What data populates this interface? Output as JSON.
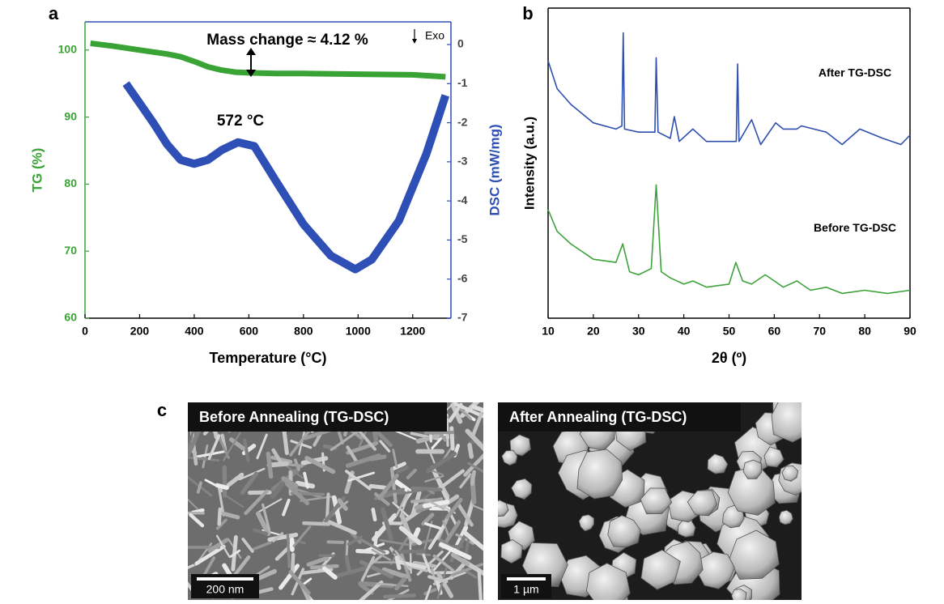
{
  "chart_data": [
    {
      "type": "line",
      "x_label": "Temperature (°C)",
      "y_label": "TG (%)",
      "y2_label": "DSC (mW/mg)",
      "annotations": [
        "Mass change ≈ 4.12 %",
        "572 °C",
        "Exo"
      ],
      "xlim": [
        0,
        1340
      ],
      "xticks": [
        0,
        200,
        400,
        600,
        800,
        1000,
        1200
      ],
      "ylim": [
        60,
        104.2
      ],
      "yticks": [
        60,
        70,
        80,
        90,
        100
      ],
      "y2lim": [
        -7,
        0.58
      ],
      "y2ticks": [
        0,
        -1,
        -2,
        -3,
        -4,
        -5,
        -6,
        -7
      ],
      "series": [
        {
          "color": "#3aa335",
          "x": [
            20,
            100,
            200,
            300,
            350,
            400,
            450,
            500,
            550,
            600,
            700,
            800,
            1000,
            1200,
            1320
          ],
          "values": [
            101,
            100.6,
            100,
            99.4,
            99,
            98.3,
            97.5,
            97,
            96.7,
            96.6,
            96.5,
            96.5,
            96.4,
            96.3,
            96
          ]
        },
        {
          "color": "#2e4fb5",
          "axis": "y2",
          "x": [
            150,
            200,
            250,
            300,
            350,
            400,
            450,
            500,
            560,
            620,
            700,
            800,
            900,
            990,
            1050,
            1150,
            1250,
            1320
          ],
          "values": [
            -1.0,
            -1.5,
            -2.0,
            -2.55,
            -2.95,
            -3.05,
            -2.95,
            -2.7,
            -2.5,
            -2.6,
            -3.5,
            -4.6,
            -5.4,
            -5.75,
            -5.5,
            -4.5,
            -2.8,
            -1.3
          ]
        }
      ]
    },
    {
      "type": "line",
      "x_label": "2θ (º)",
      "y_label": "Intensity (a.u.)",
      "xlim": [
        10,
        90
      ],
      "xticks": [
        10,
        20,
        30,
        40,
        50,
        60,
        70,
        80,
        90
      ],
      "ylim": [
        0,
        100
      ],
      "series": [
        {
          "name": "After TG-DSC",
          "color": "#2f4fae",
          "x": [
            10,
            12,
            15,
            20,
            25,
            26.3,
            26.6,
            26.9,
            30,
            33.6,
            33.9,
            34.3,
            37,
            37.9,
            39,
            42,
            45,
            51.6,
            51.9,
            52.2,
            55,
            57,
            60.3,
            62,
            65,
            66,
            71.5,
            75,
            78.9,
            84,
            88,
            90
          ],
          "values": [
            83,
            74,
            69,
            63,
            61,
            62,
            92,
            61,
            60,
            60,
            84,
            60,
            58,
            65,
            57,
            61,
            57,
            57,
            82,
            57,
            64,
            56,
            63,
            61,
            61,
            62,
            60,
            56,
            61,
            58,
            56,
            59
          ]
        },
        {
          "name": "Before TG-DSC",
          "color": "#3da23a",
          "x": [
            10,
            12,
            15,
            20,
            25,
            26.5,
            28,
            30,
            32.8,
            33.9,
            35,
            37,
            40,
            42,
            45,
            50,
            51.5,
            53,
            55,
            58,
            60,
            62,
            65,
            68,
            71.5,
            75,
            80,
            85,
            90
          ],
          "values": [
            35,
            28,
            24,
            19,
            18,
            24,
            15,
            14,
            16,
            43,
            15,
            13,
            11,
            12,
            10,
            11,
            18,
            12,
            11,
            14,
            12,
            10,
            12,
            9,
            10,
            8,
            9,
            8,
            9
          ]
        }
      ]
    }
  ],
  "figure": {
    "panel_labels": [
      "a",
      "b",
      "c"
    ],
    "images": [
      {
        "caption": "Before Annealing (TG-DSC)",
        "scale_bar": "200 nm"
      },
      {
        "caption": "After Annealing (TG-DSC)",
        "scale_bar": "1 µm"
      }
    ]
  }
}
